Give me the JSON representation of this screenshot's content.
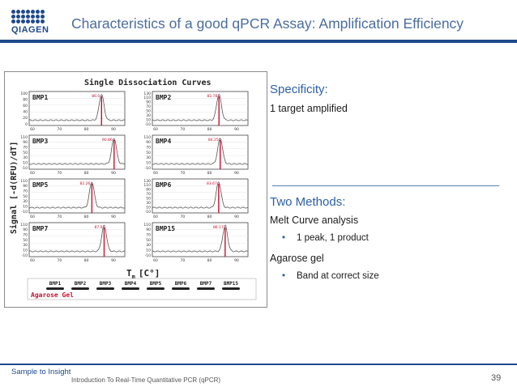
{
  "header": {
    "logo_text": "QIAGEN",
    "title": "Characteristics of a good qPCR Assay: Amplification Efficiency"
  },
  "figure": {
    "heading": "Single Dissociation Curves",
    "y_axis_label": "Signal [-d(RFU)/dT]",
    "x_axis_label": "T",
    "x_axis_sub": "m",
    "x_axis_unit": "[C°]",
    "panels": [
      {
        "name": "BMP1",
        "peak": "86.0",
        "ticks_y": [
          "100",
          "80",
          "60",
          "40",
          "20",
          "0"
        ]
      },
      {
        "name": "BMP2",
        "peak": "83.78",
        "ticks_y": [
          "130",
          "110",
          "90",
          "70",
          "50",
          "30",
          "10",
          "-10"
        ]
      },
      {
        "name": "BMP3",
        "peak": "90.86",
        "ticks_y": [
          "110",
          "90",
          "70",
          "50",
          "30",
          "10",
          "-10"
        ]
      },
      {
        "name": "BMP4",
        "peak": "84.25",
        "ticks_y": [
          "110",
          "90",
          "70",
          "50",
          "30",
          "10",
          "-10"
        ]
      },
      {
        "name": "BMP5",
        "peak": "82.26",
        "ticks_y": [
          "110",
          "90",
          "70",
          "50",
          "30",
          "10",
          "-10"
        ]
      },
      {
        "name": "BMP6",
        "peak": "83.67",
        "ticks_y": [
          "130",
          "110",
          "90",
          "70",
          "50",
          "30",
          "10",
          "-10"
        ]
      },
      {
        "name": "BMP7",
        "peak": "87.0",
        "ticks_y": [
          "110",
          "90",
          "70",
          "50",
          "30",
          "10",
          "-10"
        ]
      },
      {
        "name": "BMP15",
        "peak": "86.17",
        "ticks_y": [
          "110",
          "90",
          "70",
          "50",
          "30",
          "10",
          "-10"
        ]
      }
    ],
    "x_ticks": [
      "60",
      "70",
      "80",
      "90"
    ],
    "gel_label": "Agarose Gel",
    "gel_lanes": [
      "BMP1",
      "BMP2",
      "BMP3",
      "BMP4",
      "BMP5",
      "BMP6",
      "BMP7",
      "BMP15"
    ]
  },
  "specificity": {
    "heading": "Specificity:",
    "text": "1 target amplified"
  },
  "methods": {
    "heading": "Two Methods:",
    "melt_title": "Melt Curve analysis",
    "melt_bullet": "1 peak, 1 product",
    "gel_title": "Agarose gel",
    "gel_bullet": "Band at correct size"
  },
  "footer": {
    "tagline": "Sample to Insight",
    "course": "Introduction To Real-Time Quantitative PCR (qPCR)",
    "page": "39"
  },
  "colors": {
    "brand_blue": "#1e4a8c",
    "heading_blue": "#2b5fa5",
    "peak_red": "#c8102e"
  }
}
